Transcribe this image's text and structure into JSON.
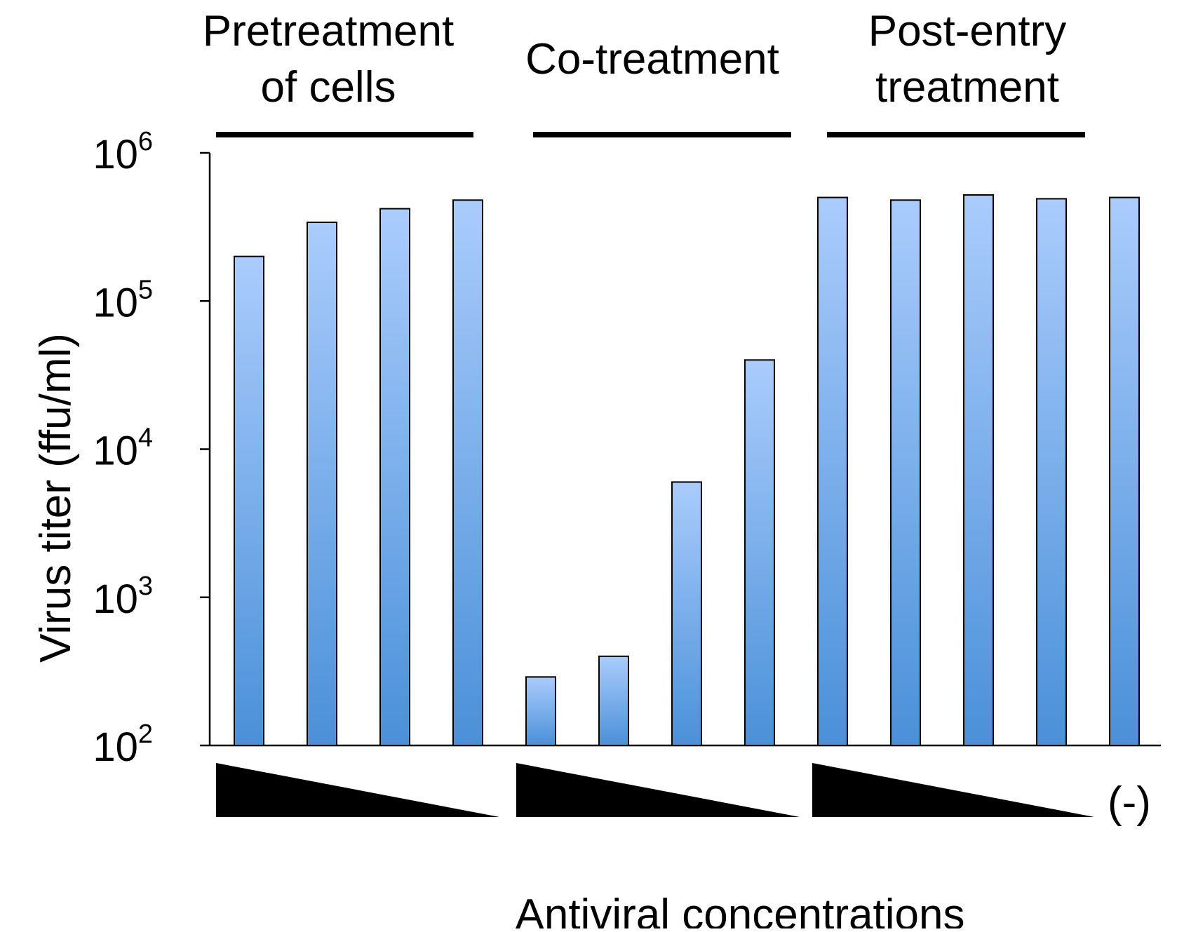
{
  "chart_data": {
    "type": "bar",
    "ylabel": "Virus titer (ffu/ml)",
    "xlabel": "Antiviral concentrations",
    "y_scale": "log",
    "ylim": [
      100,
      1000000
    ],
    "y_ticks": [
      {
        "value": 100,
        "base": "10",
        "exp": "2"
      },
      {
        "value": 1000,
        "base": "10",
        "exp": "3"
      },
      {
        "value": 10000,
        "base": "10",
        "exp": "4"
      },
      {
        "value": 100000,
        "base": "10",
        "exp": "5"
      },
      {
        "value": 1000000,
        "base": "10",
        "exp": "6"
      }
    ],
    "bar_color_top": "#aaccfc",
    "bar_color_bottom": "#4a90d9",
    "groups": [
      {
        "label_lines": [
          "Pretreatment",
          "of cells"
        ],
        "values": [
          200000,
          340000,
          420000,
          480000
        ]
      },
      {
        "label_lines": [
          "Co-treatment"
        ],
        "values": [
          290,
          400,
          6000,
          40000
        ]
      },
      {
        "label_lines": [
          "Post-entry",
          "treatment"
        ],
        "values": [
          500000,
          480000,
          520000,
          490000
        ]
      }
    ],
    "control": {
      "label": "(-)",
      "value": 500000
    }
  }
}
